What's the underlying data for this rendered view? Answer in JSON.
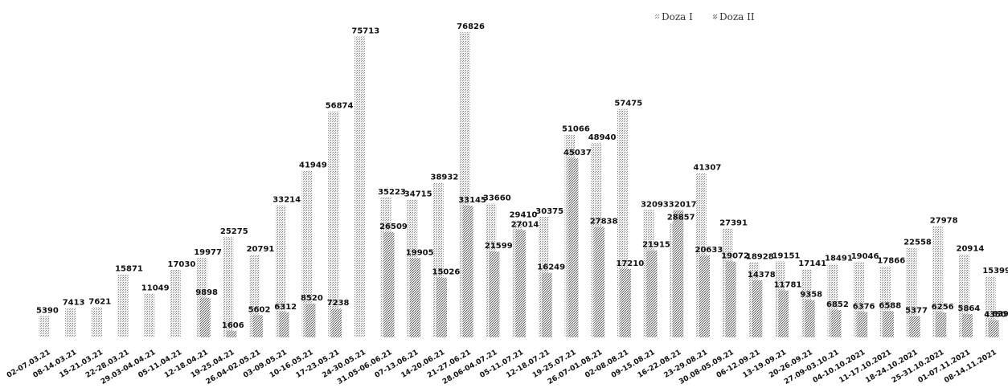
{
  "chart_data": {
    "type": "bar",
    "categories": [
      "02-07.03.21",
      "08-14.03.21",
      "15-21.03.21",
      "22-28.03.21",
      "29.03-04.04.21",
      "05-11.04.21",
      "12-18.04.21",
      "19-25.04.21",
      "26.04-02.05.21",
      "03-09.05.21",
      "10-16.05.21",
      "17-23.05.21",
      "24-30.05.21",
      "31.05-06.06.21",
      "07-13.06.21",
      "14-20.06.21",
      "21-27.06.21",
      "28.06-04.07.21",
      "05-11.07.21",
      "12-18.07.21",
      "19-25.07.21",
      "26.07-01.08.21",
      "02-08.08.21",
      "09-15.08.21",
      "16-22.08.21",
      "23-29.08.21",
      "30.08-05.09.21",
      "06-12.09.21",
      "13-19.09.21",
      "20-26.09.21",
      "27.09-03.10.21",
      "04-10.10.2021",
      "11-17.10.2021",
      "18-24.10.2021",
      "25-31.10.2021",
      "01-07.11.2021",
      "08-14.11.2021"
    ],
    "series": [
      {
        "name": "Doza I",
        "values": [
          5390,
          7413,
          7621,
          15871,
          11049,
          17030,
          19977,
          25275,
          20791,
          33214,
          41949,
          56874,
          75713,
          35223,
          34715,
          38932,
          76826,
          33660,
          29410,
          30375,
          51066,
          48940,
          57475,
          32093,
          28857,
          41307,
          27391,
          18928,
          19151,
          17141,
          18491,
          19046,
          17866,
          22558,
          27978,
          20914,
          15399
        ]
      },
      {
        "name": "Doza II",
        "values": [
          null,
          null,
          null,
          null,
          null,
          null,
          9898,
          1606,
          5602,
          6312,
          8520,
          7238,
          null,
          26509,
          19905,
          15026,
          33145,
          21599,
          27014,
          16249,
          45037,
          27838,
          17210,
          21915,
          32017,
          20633,
          19072,
          14378,
          11781,
          9358,
          6852,
          6376,
          6588,
          5377,
          6256,
          5864,
          4350
        ]
      }
    ],
    "labels_shown": [
      [
        "5390",
        null
      ],
      [
        "7413",
        null
      ],
      [
        "7621",
        null
      ],
      [
        "15871",
        null
      ],
      [
        "11049",
        null
      ],
      [
        "17030",
        null
      ],
      [
        "19977",
        "9898"
      ],
      [
        "25275",
        "1606"
      ],
      [
        "20791",
        "5602"
      ],
      [
        "33214",
        "6312"
      ],
      [
        "41949",
        "8520"
      ],
      [
        "56874",
        "7238"
      ],
      [
        "75713",
        null
      ],
      [
        "35223",
        "26509"
      ],
      [
        "34715",
        "19905"
      ],
      [
        "38932",
        "15026"
      ],
      [
        "76826",
        "33145"
      ],
      [
        "33660",
        "21599"
      ],
      [
        "29410",
        "27014"
      ],
      [
        "30375",
        "16249"
      ],
      [
        "51066",
        "45037"
      ],
      [
        "48940",
        "27838"
      ],
      [
        "57475",
        "17210"
      ],
      [
        "32093",
        "21915"
      ],
      [
        "28857",
        "32017"
      ],
      [
        "41307",
        "20633"
      ],
      [
        "27391",
        "19072"
      ],
      [
        "18928",
        "14378"
      ],
      [
        "19151",
        "11781"
      ],
      [
        "17141",
        "9358"
      ],
      [
        "18491",
        "6852"
      ],
      [
        "19046",
        "6376"
      ],
      [
        "17866",
        "6588"
      ],
      [
        "22558",
        "5377"
      ],
      [
        "27978",
        "6256"
      ],
      [
        "20914",
        "5864"
      ],
      [
        "15399",
        "4350"
      ]
    ],
    "extra_labels": [
      "639"
    ],
    "ylim": [
      0,
      80000
    ],
    "title": "",
    "xlabel": "",
    "ylabel": "",
    "grid": false,
    "legend": "top-right",
    "colors": {
      "Doza I": "#c8c8c8",
      "Doza II": "#9a9a9a"
    }
  }
}
